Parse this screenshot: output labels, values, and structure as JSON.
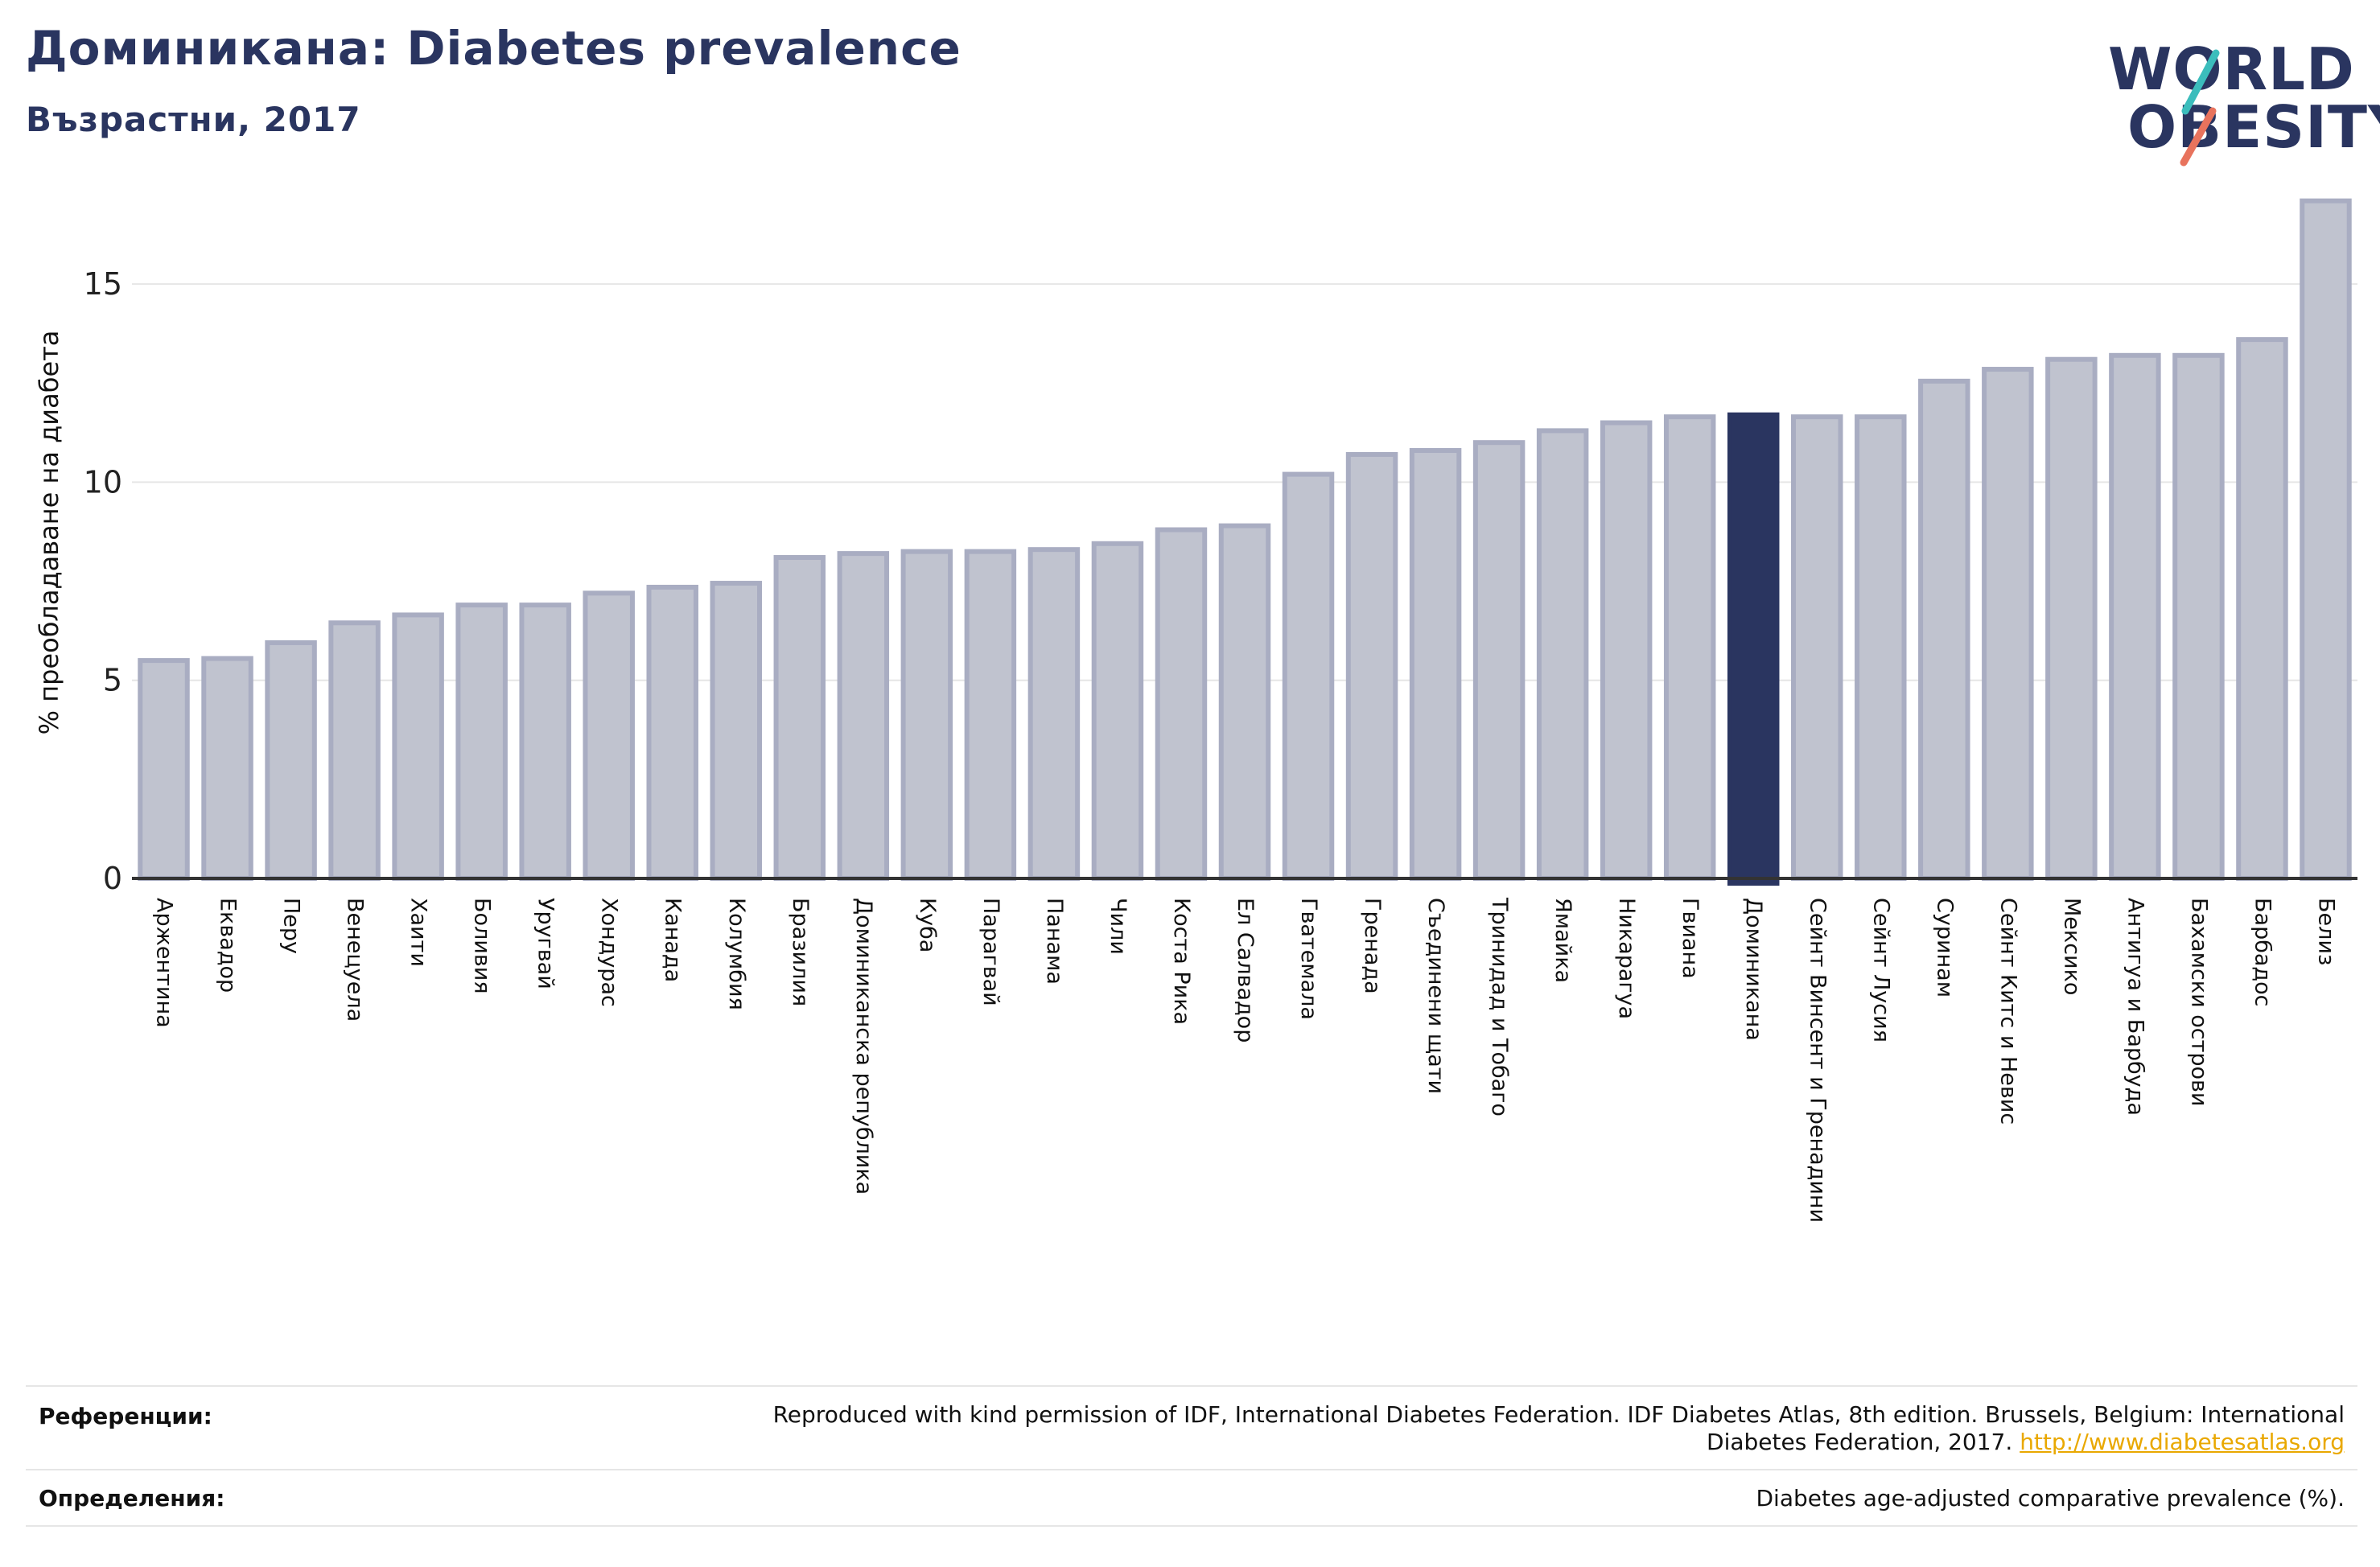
{
  "header": {
    "title": "Доминикана: Diabetes prevalence",
    "subtitle": "Възрастни, 2017"
  },
  "logo": {
    "line1": "WORLD",
    "line2": "OBESITY"
  },
  "colors": {
    "bar_fill": "#c0c3cf",
    "bar_stroke": "#a9adc2",
    "highlight": "#2a3560",
    "grid": "#e6e6e6",
    "axis": "#333333",
    "logo_teal": "#3bbdbc",
    "logo_coral": "#e8735d"
  },
  "chart_data": {
    "type": "bar",
    "title": "Доминикана: Diabetes prevalence",
    "subtitle": "Възрастни, 2017",
    "xlabel": "",
    "ylabel": "% преобладаване на диабета",
    "ylim": [
      0,
      17.5
    ],
    "yticks": [
      0,
      5,
      10,
      15
    ],
    "grid": true,
    "highlight": "Доминикана",
    "categories": [
      "Арженти­на",
      "Еквадор",
      "Перу",
      "Венецуела",
      "Хаити",
      "Боливия",
      "Уругвай",
      "Хондурас",
      "Канада",
      "Колумбия",
      "Бразилия",
      "Доминиканска република",
      "Куба",
      "Парагвай",
      "Панама",
      "Чили",
      "Коста Рика",
      "Ел Салвадор",
      "Гватемала",
      "Гренада",
      "Съединени щати",
      "Тринидад и Тобаго",
      "Ямайка",
      "Никарагуа",
      "Гвиана",
      "Доминикана",
      "Сейнт Винсент и Гренадини",
      "Сейнт Лусия",
      "Суринам",
      "Сейнт Китс и Невис",
      "Мексико",
      "Антигуа и Барбуда",
      "Бахамски острови",
      "Барбадос",
      "Белиз"
    ],
    "values": [
      5.5,
      5.55,
      5.95,
      6.45,
      6.65,
      6.9,
      6.9,
      7.2,
      7.35,
      7.45,
      8.1,
      8.2,
      8.25,
      8.25,
      8.3,
      8.45,
      8.8,
      8.9,
      10.2,
      10.7,
      10.8,
      11.0,
      11.3,
      11.5,
      11.65,
      11.7,
      11.65,
      11.65,
      12.55,
      12.85,
      13.1,
      13.2,
      13.2,
      13.6,
      17.1
    ]
  },
  "footer": {
    "references_label": "Референции:",
    "references_text": "Reproduced with kind permission of IDF, International Diabetes Federation. IDF Diabetes Atlas, 8th edition. Brussels, Belgium: International",
    "references_text2": "Diabetes Federation, 2017.",
    "references_link": "http://www.diabetesatlas.org",
    "definitions_label": "Определения:",
    "definitions_text": "Diabetes age-adjusted comparative prevalence (%)."
  }
}
